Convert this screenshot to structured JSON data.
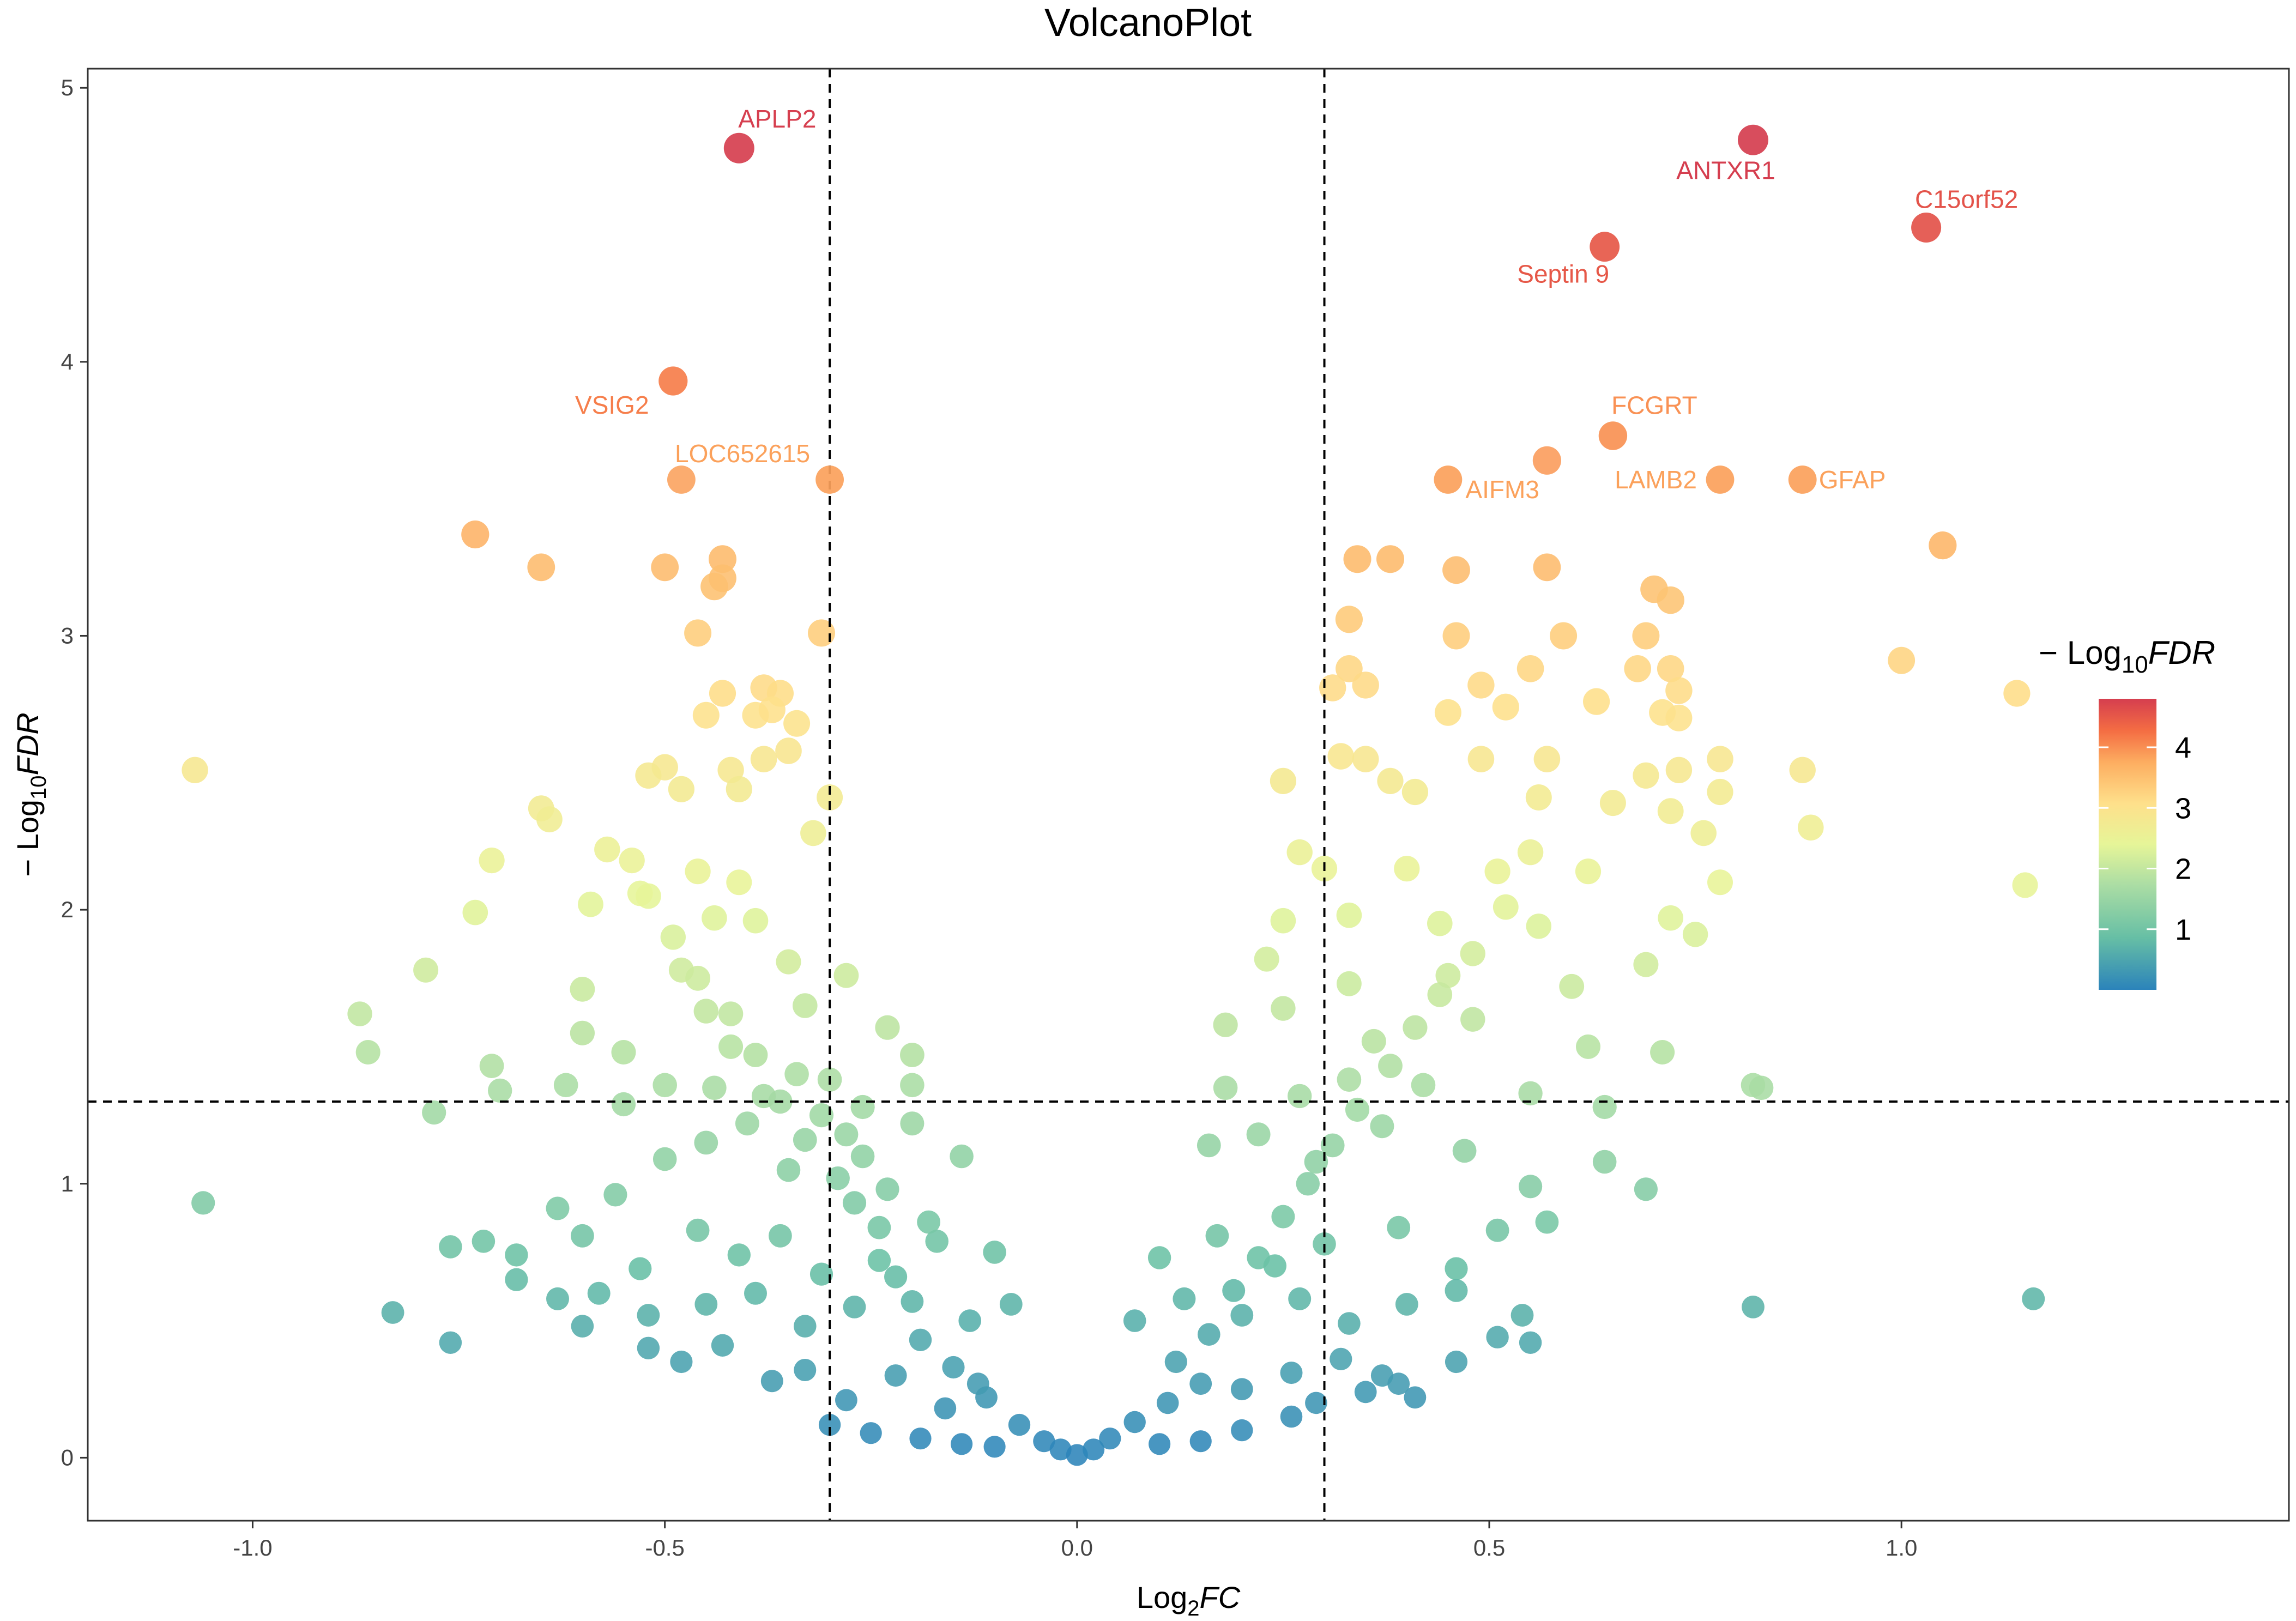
{
  "chart_data": {
    "type": "scatter",
    "title": "VolcanoPlot",
    "xlabel": {
      "prefix": "Log",
      "sub": "2",
      "italic": "FC"
    },
    "ylabel": {
      "prefix": "− Log",
      "sub": "10",
      "italic": "FDR"
    },
    "xlim": [
      -1.2,
      1.47
    ],
    "ylim": [
      -0.23,
      5.07
    ],
    "x_ticks": [
      -1.0,
      -0.5,
      0.0,
      0.5,
      1.0
    ],
    "x_tick_labels": [
      "-1.0",
      "-0.5",
      "0.0",
      "0.5",
      "1.0"
    ],
    "y_ticks": [
      0,
      1,
      2,
      3,
      4,
      5
    ],
    "y_tick_labels": [
      "0",
      "1",
      "2",
      "3",
      "4",
      "5"
    ],
    "thresholds": {
      "x": [
        -0.3,
        0.3
      ],
      "y": 1.3
    },
    "legend": {
      "title_prefix": "− Log",
      "title_sub": "10",
      "title_italic": "FDR",
      "position": "right",
      "range": [
        0,
        4.8
      ],
      "ticks": [
        1,
        2,
        3,
        4
      ],
      "tick_labels": [
        "1",
        "2",
        "3",
        "4"
      ],
      "colors": [
        "#2b83ba",
        "#67bfa5",
        "#abdda4",
        "#e6f598",
        "#fee08b",
        "#fdae61",
        "#f46d43",
        "#d53e4f"
      ]
    },
    "labeled_points": [
      {
        "gene": "APLP2",
        "x": -0.41,
        "y": 4.78
      },
      {
        "gene": "ANTXR1",
        "x": 0.82,
        "y": 4.81
      },
      {
        "gene": "C15orf52",
        "x": 1.03,
        "y": 4.49
      },
      {
        "gene": "Septin 9",
        "x": 0.64,
        "y": 4.42
      },
      {
        "gene": "VSIG2",
        "x": -0.49,
        "y": 3.93
      },
      {
        "gene": "FCGRT",
        "x": 0.65,
        "y": 3.73
      },
      {
        "gene": "LOC652615",
        "x": -0.3,
        "y": 3.57
      },
      {
        "gene": "AIFM3",
        "x": 0.45,
        "y": 3.57
      },
      {
        "gene": "LAMB2",
        "x": 0.78,
        "y": 3.57
      },
      {
        "gene": "GFAP",
        "x": 0.88,
        "y": 3.57
      }
    ],
    "points": [
      [
        -0.48,
        3.57
      ],
      [
        0.57,
        3.64
      ],
      [
        -0.73,
        3.37
      ],
      [
        -0.65,
        3.25
      ],
      [
        -0.5,
        3.25
      ],
      [
        -0.43,
        3.28
      ],
      [
        -0.43,
        3.21
      ],
      [
        -0.44,
        3.18
      ],
      [
        0.34,
        3.28
      ],
      [
        0.38,
        3.28
      ],
      [
        0.46,
        3.24
      ],
      [
        0.57,
        3.25
      ],
      [
        1.05,
        3.33
      ],
      [
        0.7,
        3.17
      ],
      [
        0.72,
        3.13
      ],
      [
        -0.46,
        3.01
      ],
      [
        -0.31,
        3.01
      ],
      [
        0.33,
        3.06
      ],
      [
        0.46,
        3.0
      ],
      [
        0.59,
        3.0
      ],
      [
        0.69,
        3.0
      ],
      [
        1.0,
        2.91
      ],
      [
        1.14,
        2.79
      ],
      [
        0.72,
        2.88
      ],
      [
        0.33,
        2.88
      ],
      [
        0.31,
        2.81
      ],
      [
        0.35,
        2.82
      ],
      [
        0.49,
        2.82
      ],
      [
        0.55,
        2.88
      ],
      [
        0.68,
        2.88
      ],
      [
        0.73,
        2.8
      ],
      [
        0.63,
        2.76
      ],
      [
        -0.43,
        2.79
      ],
      [
        -0.38,
        2.81
      ],
      [
        -0.36,
        2.79
      ],
      [
        -0.45,
        2.71
      ],
      [
        -0.39,
        2.71
      ],
      [
        -0.37,
        2.73
      ],
      [
        -0.34,
        2.68
      ],
      [
        0.45,
        2.72
      ],
      [
        0.52,
        2.74
      ],
      [
        0.71,
        2.72
      ],
      [
        0.73,
        2.7
      ],
      [
        -1.07,
        2.51
      ],
      [
        -0.5,
        2.52
      ],
      [
        -0.42,
        2.51
      ],
      [
        -0.38,
        2.55
      ],
      [
        -0.35,
        2.58
      ],
      [
        0.32,
        2.56
      ],
      [
        0.35,
        2.55
      ],
      [
        0.49,
        2.55
      ],
      [
        0.57,
        2.55
      ],
      [
        0.69,
        2.49
      ],
      [
        0.73,
        2.51
      ],
      [
        0.78,
        2.55
      ],
      [
        0.88,
        2.51
      ],
      [
        -0.52,
        2.49
      ],
      [
        -0.48,
        2.44
      ],
      [
        -0.41,
        2.44
      ],
      [
        -0.3,
        2.41
      ],
      [
        0.25,
        2.47
      ],
      [
        0.38,
        2.47
      ],
      [
        0.41,
        2.43
      ],
      [
        0.56,
        2.41
      ],
      [
        0.65,
        2.39
      ],
      [
        0.72,
        2.36
      ],
      [
        0.78,
        2.43
      ],
      [
        -0.65,
        2.37
      ],
      [
        -0.64,
        2.33
      ],
      [
        -0.71,
        2.18
      ],
      [
        -0.54,
        2.18
      ],
      [
        -0.46,
        2.14
      ],
      [
        -0.41,
        2.1
      ],
      [
        -0.32,
        2.28
      ],
      [
        0.89,
        2.3
      ],
      [
        0.76,
        2.28
      ],
      [
        0.27,
        2.21
      ],
      [
        0.3,
        2.15
      ],
      [
        0.4,
        2.15
      ],
      [
        0.51,
        2.14
      ],
      [
        0.62,
        2.14
      ],
      [
        0.78,
        2.1
      ],
      [
        1.15,
        2.09
      ],
      [
        -0.73,
        1.99
      ],
      [
        -0.59,
        2.02
      ],
      [
        -0.52,
        2.05
      ],
      [
        -0.44,
        1.97
      ],
      [
        -0.39,
        1.96
      ],
      [
        0.25,
        1.96
      ],
      [
        0.33,
        1.98
      ],
      [
        0.44,
        1.95
      ],
      [
        0.56,
        1.94
      ],
      [
        0.72,
        1.97
      ],
      [
        0.75,
        1.91
      ],
      [
        -0.79,
        1.78
      ],
      [
        -0.6,
        1.71
      ],
      [
        -0.48,
        1.78
      ],
      [
        -0.35,
        1.81
      ],
      [
        -0.28,
        1.76
      ],
      [
        0.23,
        1.82
      ],
      [
        0.33,
        1.73
      ],
      [
        0.45,
        1.76
      ],
      [
        0.6,
        1.72
      ],
      [
        0.69,
        1.8
      ],
      [
        -0.87,
        1.62
      ],
      [
        -0.86,
        1.48
      ],
      [
        -0.71,
        1.43
      ],
      [
        -0.6,
        1.55
      ],
      [
        -0.55,
        1.48
      ],
      [
        -0.45,
        1.63
      ],
      [
        -0.42,
        1.5
      ],
      [
        -0.33,
        1.65
      ],
      [
        -0.23,
        1.57
      ],
      [
        -0.2,
        1.47
      ],
      [
        0.18,
        1.58
      ],
      [
        0.25,
        1.64
      ],
      [
        0.36,
        1.52
      ],
      [
        0.48,
        1.6
      ],
      [
        0.62,
        1.5
      ],
      [
        0.71,
        1.48
      ],
      [
        -0.78,
        1.26
      ],
      [
        -0.7,
        1.34
      ],
      [
        -0.62,
        1.36
      ],
      [
        -0.55,
        1.29
      ],
      [
        -0.5,
        1.36
      ],
      [
        -0.44,
        1.35
      ],
      [
        -0.38,
        1.32
      ],
      [
        -0.3,
        1.38
      ],
      [
        -0.26,
        1.28
      ],
      [
        -0.2,
        1.36
      ],
      [
        0.18,
        1.35
      ],
      [
        0.27,
        1.32
      ],
      [
        0.33,
        1.38
      ],
      [
        0.42,
        1.36
      ],
      [
        0.55,
        1.33
      ],
      [
        0.64,
        1.28
      ],
      [
        0.82,
        1.36
      ],
      [
        0.83,
        1.35
      ],
      [
        -1.06,
        0.93
      ],
      [
        -0.63,
        0.91
      ],
      [
        -0.56,
        0.96
      ],
      [
        -0.5,
        1.09
      ],
      [
        -0.45,
        1.15
      ],
      [
        -0.4,
        1.22
      ],
      [
        -0.35,
        1.05
      ],
      [
        -0.28,
        1.18
      ],
      [
        -0.2,
        1.22
      ],
      [
        -0.14,
        1.1
      ],
      [
        0.16,
        1.14
      ],
      [
        0.22,
        1.18
      ],
      [
        0.29,
        1.08
      ],
      [
        0.37,
        1.21
      ],
      [
        0.47,
        1.12
      ],
      [
        0.55,
        0.99
      ],
      [
        0.64,
        1.08
      ],
      [
        0.69,
        0.98
      ],
      [
        -0.76,
        0.77
      ],
      [
        -0.72,
        0.79
      ],
      [
        -0.68,
        0.74
      ],
      [
        -0.6,
        0.81
      ],
      [
        -0.53,
        0.69
      ],
      [
        -0.46,
        0.83
      ],
      [
        -0.41,
        0.74
      ],
      [
        -0.36,
        0.81
      ],
      [
        -0.31,
        0.67
      ],
      [
        -0.24,
        0.72
      ],
      [
        -0.17,
        0.79
      ],
      [
        -0.1,
        0.75
      ],
      [
        0.1,
        0.73
      ],
      [
        0.17,
        0.81
      ],
      [
        0.24,
        0.7
      ],
      [
        0.3,
        0.78
      ],
      [
        0.39,
        0.84
      ],
      [
        0.46,
        0.69
      ],
      [
        0.51,
        0.83
      ],
      [
        0.57,
        0.86
      ],
      [
        -0.68,
        0.65
      ],
      [
        -0.63,
        0.58
      ],
      [
        -0.58,
        0.6
      ],
      [
        -0.52,
        0.52
      ],
      [
        -0.45,
        0.56
      ],
      [
        -0.39,
        0.6
      ],
      [
        -0.33,
        0.48
      ],
      [
        -0.27,
        0.55
      ],
      [
        -0.2,
        0.57
      ],
      [
        -0.13,
        0.5
      ],
      [
        -0.08,
        0.56
      ],
      [
        0.07,
        0.5
      ],
      [
        0.13,
        0.58
      ],
      [
        0.2,
        0.52
      ],
      [
        0.27,
        0.58
      ],
      [
        0.33,
        0.49
      ],
      [
        0.4,
        0.56
      ],
      [
        0.46,
        0.61
      ],
      [
        0.54,
        0.52
      ],
      [
        0.82,
        0.55
      ],
      [
        1.16,
        0.58
      ],
      [
        -0.83,
        0.53
      ],
      [
        -0.76,
        0.42
      ],
      [
        -0.6,
        0.48
      ],
      [
        -0.52,
        0.4
      ],
      [
        -0.48,
        0.35
      ],
      [
        -0.43,
        0.41
      ],
      [
        -0.37,
        0.28
      ],
      [
        -0.33,
        0.32
      ],
      [
        -0.28,
        0.21
      ],
      [
        -0.22,
        0.3
      ],
      [
        -0.16,
        0.18
      ],
      [
        -0.11,
        0.22
      ],
      [
        -0.07,
        0.12
      ],
      [
        -0.04,
        0.06
      ],
      [
        -0.02,
        0.03
      ],
      [
        0.0,
        0.01
      ],
      [
        0.02,
        0.03
      ],
      [
        0.04,
        0.07
      ],
      [
        0.07,
        0.13
      ],
      [
        0.11,
        0.2
      ],
      [
        0.15,
        0.27
      ],
      [
        0.2,
        0.25
      ],
      [
        0.26,
        0.31
      ],
      [
        0.32,
        0.36
      ],
      [
        0.37,
        0.3
      ],
      [
        0.41,
        0.22
      ],
      [
        0.46,
        0.35
      ],
      [
        0.51,
        0.44
      ],
      [
        0.55,
        0.42
      ],
      [
        -0.3,
        0.12
      ],
      [
        -0.25,
        0.09
      ],
      [
        -0.19,
        0.07
      ],
      [
        -0.14,
        0.05
      ],
      [
        -0.1,
        0.04
      ],
      [
        0.1,
        0.05
      ],
      [
        0.15,
        0.06
      ],
      [
        0.2,
        0.1
      ],
      [
        0.26,
        0.15
      ],
      [
        0.29,
        0.2
      ],
      [
        0.35,
        0.24
      ],
      [
        0.39,
        0.27
      ],
      [
        -0.39,
        1.47
      ],
      [
        -0.36,
        1.3
      ],
      [
        -0.33,
        1.16
      ],
      [
        -0.29,
        1.02
      ],
      [
        -0.27,
        0.93
      ],
      [
        -0.24,
        0.84
      ],
      [
        -0.22,
        0.66
      ],
      [
        -0.19,
        0.43
      ],
      [
        -0.15,
        0.33
      ],
      [
        -0.12,
        0.27
      ],
      [
        0.12,
        0.35
      ],
      [
        0.16,
        0.45
      ],
      [
        0.19,
        0.61
      ],
      [
        0.22,
        0.73
      ],
      [
        0.25,
        0.88
      ],
      [
        0.28,
        1.0
      ],
      [
        0.31,
        1.14
      ],
      [
        0.34,
        1.27
      ],
      [
        0.38,
        1.43
      ],
      [
        0.41,
        1.57
      ],
      [
        0.44,
        1.69
      ],
      [
        0.48,
        1.84
      ],
      [
        0.52,
        2.01
      ],
      [
        0.55,
        2.21
      ],
      [
        -0.42,
        1.62
      ],
      [
        -0.46,
        1.75
      ],
      [
        -0.49,
        1.9
      ],
      [
        -0.53,
        2.06
      ],
      [
        -0.57,
        2.22
      ],
      [
        -0.34,
        1.4
      ],
      [
        -0.31,
        1.25
      ],
      [
        -0.26,
        1.1
      ],
      [
        -0.23,
        0.98
      ],
      [
        -0.18,
        0.86
      ]
    ]
  }
}
